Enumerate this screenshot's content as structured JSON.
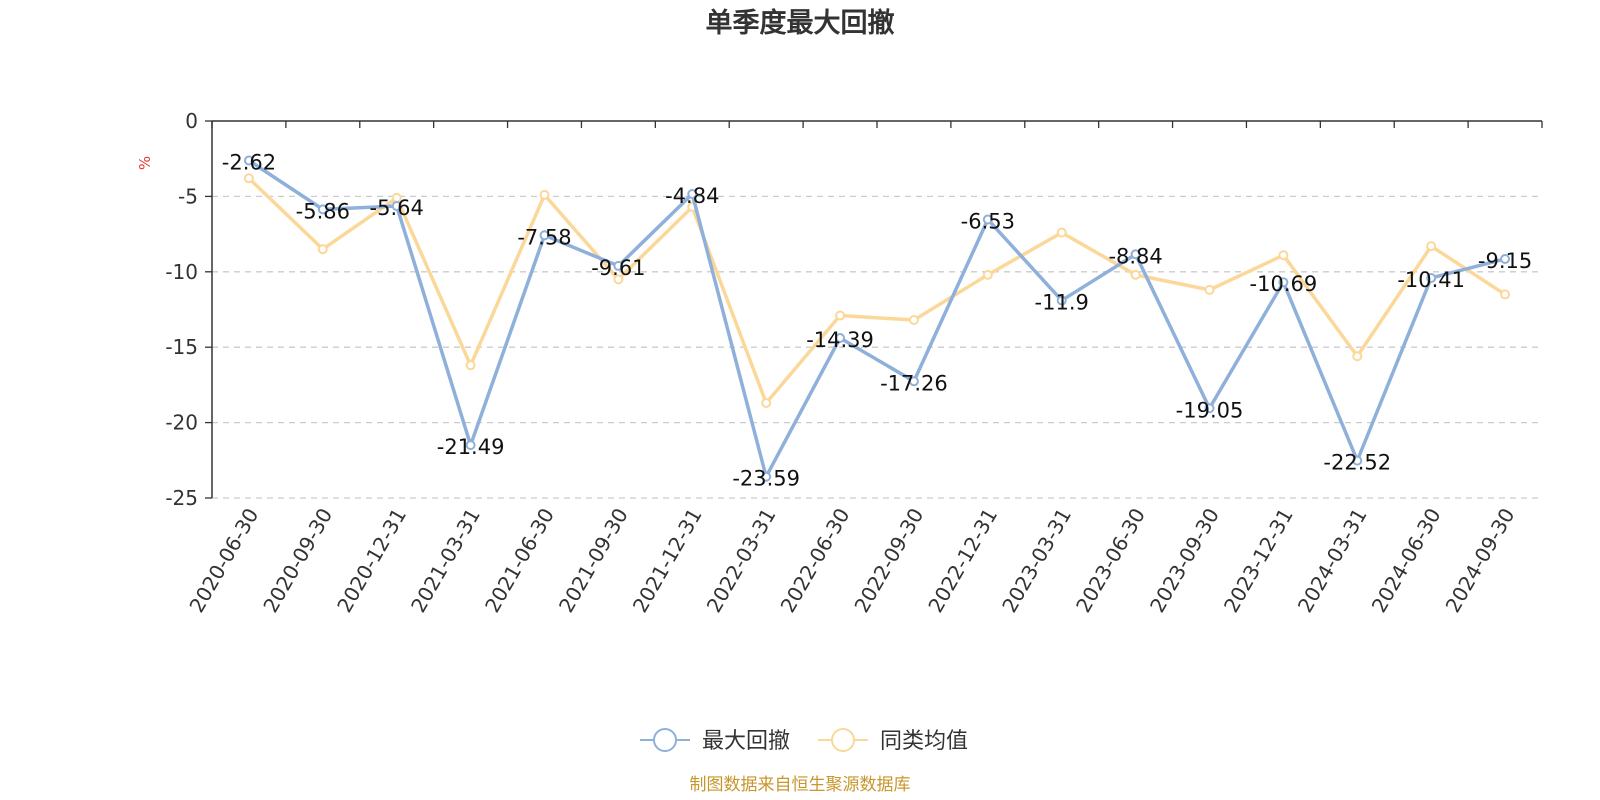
{
  "chart_data": {
    "type": "line",
    "title": "单季度最大回撤",
    "y_unit": "%",
    "ylim": [
      -25,
      0
    ],
    "y_ticks": [
      0,
      -5,
      -10,
      -15,
      -20,
      -25
    ],
    "grid": true,
    "legend_position": "bottom",
    "categories": [
      "2020-06-30",
      "2020-09-30",
      "2020-12-31",
      "2021-03-31",
      "2021-06-30",
      "2021-09-30",
      "2021-12-31",
      "2022-03-31",
      "2022-06-30",
      "2022-09-30",
      "2022-12-31",
      "2023-03-31",
      "2023-06-30",
      "2023-09-30",
      "2023-12-31",
      "2024-03-31",
      "2024-06-30",
      "2024-09-30"
    ],
    "series": [
      {
        "name": "最大回撤",
        "color": "#8eb0da",
        "show_labels": true,
        "values": [
          -2.62,
          -5.86,
          -5.64,
          -21.49,
          -7.58,
          -9.61,
          -4.84,
          -23.59,
          -14.39,
          -17.26,
          -6.53,
          -11.9,
          -8.84,
          -19.05,
          -10.69,
          -22.52,
          -10.41,
          -9.15
        ]
      },
      {
        "name": "同类均值",
        "color": "#fbd899",
        "show_labels": false,
        "values": [
          -3.8,
          -8.5,
          -5.1,
          -16.2,
          -4.9,
          -10.5,
          -5.7,
          -18.7,
          -12.9,
          -13.2,
          -10.2,
          -7.4,
          -10.2,
          -11.2,
          -8.9,
          -15.6,
          -8.3,
          -11.5
        ]
      }
    ]
  },
  "source_note": "制图数据来自恒生聚源数据库"
}
